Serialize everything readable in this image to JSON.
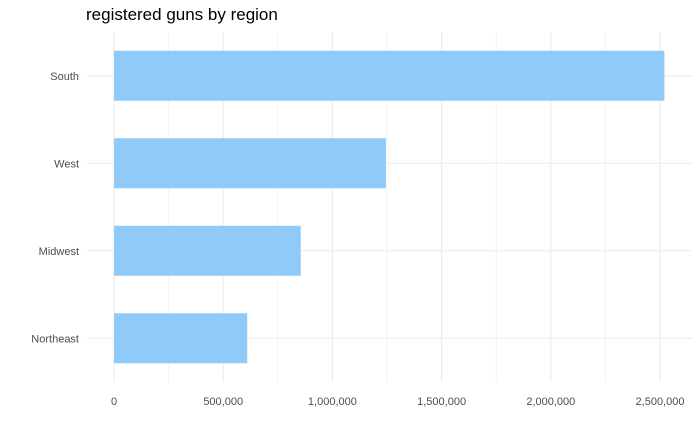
{
  "chart_data": {
    "type": "bar",
    "orientation": "horizontal",
    "title": "registered guns by region",
    "xlabel": "",
    "ylabel": "",
    "categories": [
      "South",
      "West",
      "Midwest",
      "Northeast"
    ],
    "values": [
      2520000,
      1245000,
      855000,
      610000
    ],
    "xlim": [
      0,
      2640000
    ],
    "x_ticks": [
      0,
      500000,
      1000000,
      1500000,
      2000000,
      2500000
    ],
    "x_tick_labels": [
      "0",
      "500,000",
      "1,000,000",
      "1,500,000",
      "2,000,000",
      "2,500,000"
    ],
    "grid": true,
    "legend": "none",
    "bar_color": "#90CAF9",
    "grid_color": "#ebebeb"
  }
}
